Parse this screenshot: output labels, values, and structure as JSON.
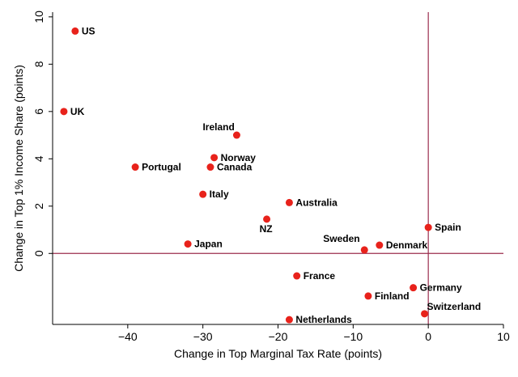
{
  "chart_data": {
    "type": "scatter",
    "title": "",
    "xlabel": "Change in Top Marginal Tax Rate (points)",
    "ylabel": "Change in Top 1% Income Share (points)",
    "xlim": [
      -50,
      10
    ],
    "ylim": [
      -3,
      10.2
    ],
    "x_ticks": [
      -40,
      -30,
      -20,
      -10,
      0,
      10
    ],
    "x_tick_labels": [
      "−40",
      "−30",
      "−20",
      "−10",
      "0",
      "10"
    ],
    "y_ticks": [
      0,
      2,
      4,
      6,
      8,
      10
    ],
    "y_tick_labels": [
      "0",
      "2",
      "4",
      "6",
      "8",
      "10"
    ],
    "grid": false,
    "legend": "none",
    "reference_lines": {
      "x": 0,
      "y": 0
    },
    "colors": {
      "point": "#e8221b",
      "reference_line": "#9b2d4e",
      "axis": "#000000"
    },
    "points": [
      {
        "label": "US",
        "x": -47,
        "y": 9.4
      },
      {
        "label": "UK",
        "x": -48.5,
        "y": 6.0
      },
      {
        "label": "Ireland",
        "x": -25.5,
        "y": 5.0
      },
      {
        "label": "Norway",
        "x": -28.5,
        "y": 4.05
      },
      {
        "label": "Canada",
        "x": -29,
        "y": 3.65
      },
      {
        "label": "Portugal",
        "x": -39,
        "y": 3.65
      },
      {
        "label": "Italy",
        "x": -30,
        "y": 2.5
      },
      {
        "label": "Australia",
        "x": -18.5,
        "y": 2.15
      },
      {
        "label": "NZ",
        "x": -21.5,
        "y": 1.45
      },
      {
        "label": "Spain",
        "x": 0,
        "y": 1.1
      },
      {
        "label": "Denmark",
        "x": -6.5,
        "y": 0.35
      },
      {
        "label": "Sweden",
        "x": -8.5,
        "y": 0.15
      },
      {
        "label": "Japan",
        "x": -32,
        "y": 0.4
      },
      {
        "label": "France",
        "x": -17.5,
        "y": -0.95
      },
      {
        "label": "Germany",
        "x": -2,
        "y": -1.45
      },
      {
        "label": "Finland",
        "x": -8,
        "y": -1.8
      },
      {
        "label": "Switzerland",
        "x": -0.5,
        "y": -2.55
      },
      {
        "label": "Netherlands",
        "x": -18.5,
        "y": -2.8
      }
    ]
  }
}
